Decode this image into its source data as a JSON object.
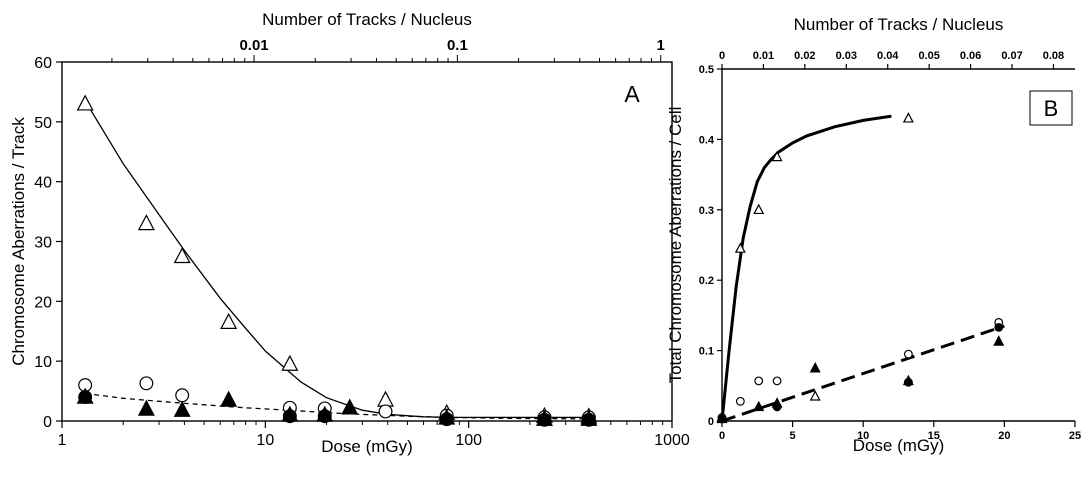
{
  "chart_data": [
    {
      "panel_label": "A",
      "type": "scatter",
      "title": "",
      "xlabel": "Dose (mGy)",
      "ylabel": "Chromosome Aberrations / Track",
      "x2label": "Number of Tracks / Nucleus",
      "x_scale": "log",
      "xlim": [
        1,
        1000
      ],
      "ylim": [
        0,
        60
      ],
      "x_ticks": [
        1,
        10,
        100,
        1000
      ],
      "x_tick_labels": [
        "1",
        "10",
        "100",
        "1000"
      ],
      "y_ticks": [
        0,
        10,
        20,
        30,
        40,
        50,
        60
      ],
      "y_tick_labels": [
        "0",
        "10",
        "20",
        "30",
        "40",
        "50",
        "60"
      ],
      "top_ticks": [
        {
          "dose": 8.8,
          "label": "0.01"
        },
        {
          "dose": 88,
          "label": "0.1"
        },
        {
          "dose": 880,
          "label": "1"
        }
      ],
      "series": [
        {
          "marker": "open-triangle",
          "x": [
            1.3,
            2.6,
            3.9,
            6.6,
            13.2,
            39,
            78,
            236,
            390
          ],
          "y": [
            53,
            33,
            27.5,
            16.5,
            9.5,
            3.5,
            1.3,
            0.8,
            0.7
          ]
        },
        {
          "marker": "open-circle",
          "x": [
            1.3,
            2.6,
            3.9,
            13.2,
            19.6,
            39,
            78,
            236,
            390
          ],
          "y": [
            6,
            6.3,
            4.3,
            2.2,
            2.1,
            1.6,
            0.9,
            0.6,
            0.6
          ]
        },
        {
          "marker": "filled-triangle",
          "x": [
            1.3,
            2.6,
            3.9,
            6.6,
            13.2,
            19.6,
            26,
            78,
            236,
            390
          ],
          "y": [
            4,
            2,
            1.8,
            3.5,
            1,
            1,
            2.2,
            0.5,
            0.3,
            0.3
          ]
        },
        {
          "marker": "filled-circle",
          "x": [
            1.3,
            13.2,
            19.6,
            78,
            236,
            390
          ],
          "y": [
            4,
            0.8,
            0.8,
            0.3,
            0.2,
            0.2
          ]
        }
      ],
      "fits": [
        {
          "style": "solid",
          "x": [
            1.3,
            2,
            3,
            4,
            6,
            8,
            10,
            15,
            20,
            30,
            40,
            60,
            80,
            100,
            150,
            200,
            300,
            400
          ],
          "y": [
            53.5,
            43,
            34.5,
            28.5,
            20.5,
            15.5,
            11.7,
            6.5,
            3.9,
            1.8,
            1.1,
            0.7,
            0.6,
            0.6,
            0.6,
            0.6,
            0.6,
            0.6
          ]
        },
        {
          "style": "dashed",
          "x": [
            1.3,
            2,
            3,
            5,
            8,
            13,
            20,
            30,
            50,
            80,
            150,
            400
          ],
          "y": [
            4.6,
            3.8,
            3.3,
            2.7,
            2.2,
            1.8,
            1.4,
            1.1,
            0.8,
            0.6,
            0.45,
            0.35
          ]
        }
      ]
    },
    {
      "panel_label": "B",
      "type": "scatter",
      "title": "",
      "xlabel": "Dose (mGy)",
      "ylabel": "Total Chromosome Aberrations / Cell",
      "x2label": "Number of Tracks / Nucleus",
      "xlim": [
        0,
        25
      ],
      "ylim": [
        0,
        0.5
      ],
      "x_ticks": [
        0,
        5,
        10,
        15,
        20,
        25
      ],
      "x_tick_labels": [
        "0",
        "5",
        "10",
        "15",
        "20",
        "25"
      ],
      "y_ticks": [
        0,
        0.1,
        0.2,
        0.3,
        0.4,
        0.5
      ],
      "y_tick_labels": [
        "0",
        "0.1",
        "0.2",
        "0.3",
        "0.4",
        "0.5"
      ],
      "top_ticks": [
        0,
        0.01,
        0.02,
        0.03,
        0.04,
        0.05,
        0.06,
        0.07,
        0.08
      ],
      "top_tick_labels": [
        "0",
        "0.01",
        "0.02",
        "0.03",
        "0.04",
        "0.05",
        "0.06",
        "0.07",
        "0.08"
      ],
      "top_xlim": [
        0,
        0.0852
      ],
      "series": [
        {
          "marker": "open-triangle",
          "x": [
            0,
            1.3,
            2.6,
            3.9,
            6.6,
            13.2
          ],
          "y": [
            0.005,
            0.245,
            0.3,
            0.375,
            0.035,
            0.43
          ]
        },
        {
          "marker": "open-circle",
          "x": [
            0,
            1.3,
            2.6,
            3.9,
            13.2,
            19.6
          ],
          "y": [
            0.005,
            0.028,
            0.057,
            0.057,
            0.095,
            0.14
          ]
        },
        {
          "marker": "filled-triangle",
          "x": [
            0,
            2.6,
            3.9,
            6.6,
            13.2,
            19.6
          ],
          "y": [
            0.003,
            0.02,
            0.025,
            0.075,
            0.057,
            0.113
          ]
        },
        {
          "marker": "filled-circle",
          "x": [
            0,
            3.9,
            13.2,
            19.6
          ],
          "y": [
            0.003,
            0.02,
            0.055,
            0.133
          ]
        }
      ],
      "fits": [
        {
          "style": "solid-bold",
          "x": [
            0,
            0.5,
            1,
            1.5,
            2,
            2.5,
            3,
            3.5,
            4,
            5,
            6,
            8,
            10,
            12
          ],
          "y": [
            0,
            0.1,
            0.19,
            0.26,
            0.305,
            0.34,
            0.36,
            0.372,
            0.382,
            0.395,
            0.405,
            0.418,
            0.427,
            0.433
          ]
        },
        {
          "style": "dashed-bold",
          "x": [
            0,
            20
          ],
          "y": [
            0,
            0.135
          ]
        }
      ]
    }
  ]
}
